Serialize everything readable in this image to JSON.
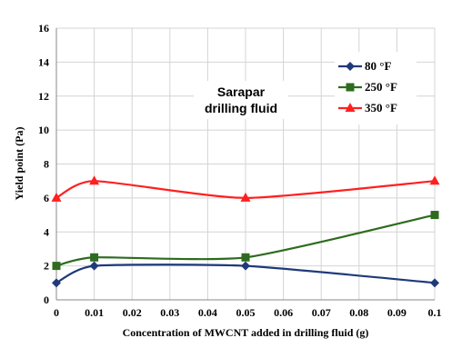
{
  "chart_data": {
    "type": "line",
    "title": "Sarapar drilling fluid",
    "title_lines": [
      "Sarapar",
      "drilling fluid"
    ],
    "xlabel": "Concentration of MWCNT added in drilling fluid (g)",
    "ylabel": "Yield point (Pa)",
    "x_ticks": [
      "0",
      "0.01",
      "0.02",
      "0.03",
      "0.04",
      "0.05",
      "0.06",
      "0.07",
      "0.08",
      "0.09",
      "0.1"
    ],
    "y_ticks": [
      "0",
      "2",
      "4",
      "6",
      "8",
      "10",
      "12",
      "14",
      "16"
    ],
    "xlim": [
      0,
      0.1
    ],
    "ylim": [
      0,
      16
    ],
    "grid": true,
    "smooth": true,
    "legend_position": "top-right",
    "series": [
      {
        "name": "80 °F",
        "color": "#1f3a7a",
        "marker": "diamond",
        "x": [
          0,
          0.01,
          0.05,
          0.1
        ],
        "y": [
          1,
          2,
          2,
          1
        ]
      },
      {
        "name": "250 °F",
        "color": "#2e6b1f",
        "marker": "square",
        "x": [
          0,
          0.01,
          0.05,
          0.1
        ],
        "y": [
          2,
          2.5,
          2.5,
          5
        ]
      },
      {
        "name": "350 °F",
        "color": "#ff2020",
        "marker": "triangle",
        "x": [
          0,
          0.01,
          0.05,
          0.1
        ],
        "y": [
          6,
          7,
          6,
          7
        ]
      }
    ]
  }
}
